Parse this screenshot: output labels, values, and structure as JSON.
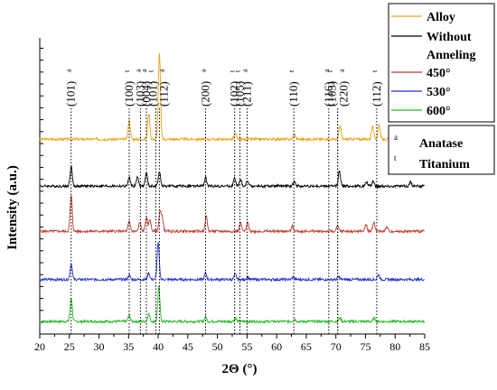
{
  "chart_data": {
    "type": "line",
    "xlabel": "2Θ (°)",
    "ylabel": "Intensity (a.u.)",
    "xlim": [
      20,
      85
    ],
    "xticks": [
      20,
      25,
      30,
      35,
      40,
      45,
      50,
      55,
      60,
      65,
      70,
      75,
      80,
      85
    ],
    "grid": false,
    "legend_position": "top-right",
    "series": [
      {
        "name": "Alloy",
        "color": "#e8a317",
        "offset": 4,
        "baseline": 0.12,
        "peaks": [
          [
            35.1,
            0.45
          ],
          [
            38.4,
            0.6
          ],
          [
            40.2,
            2.0
          ],
          [
            53.0,
            0.15
          ],
          [
            63.0,
            0.12
          ],
          [
            70.7,
            0.3
          ],
          [
            76.2,
            0.3
          ],
          [
            77.3,
            0.35
          ]
        ]
      },
      {
        "name": "Without Anneling",
        "color": "#000000",
        "offset": 3,
        "baseline": 0.08,
        "peaks": [
          [
            25.3,
            0.45
          ],
          [
            35.1,
            0.2
          ],
          [
            36.5,
            0.22
          ],
          [
            38.0,
            0.3
          ],
          [
            40.2,
            0.35
          ],
          [
            48.0,
            0.2
          ],
          [
            52.9,
            0.18
          ],
          [
            53.9,
            0.14
          ],
          [
            55.1,
            0.12
          ],
          [
            63.0,
            0.12
          ],
          [
            70.6,
            0.35
          ],
          [
            75.2,
            0.1
          ],
          [
            76.3,
            0.12
          ],
          [
            82.6,
            0.1
          ]
        ]
      },
      {
        "name": "450°",
        "color": "#c0392b",
        "offset": 2,
        "baseline": 0.1,
        "peaks": [
          [
            25.3,
            0.82
          ],
          [
            35.1,
            0.22
          ],
          [
            36.9,
            0.2
          ],
          [
            38.0,
            0.32
          ],
          [
            38.6,
            0.28
          ],
          [
            40.3,
            0.45
          ],
          [
            40.7,
            0.3
          ],
          [
            48.1,
            0.35
          ],
          [
            53.9,
            0.2
          ],
          [
            55.1,
            0.2
          ],
          [
            62.7,
            0.12
          ],
          [
            70.3,
            0.12
          ],
          [
            75.1,
            0.15
          ],
          [
            76.4,
            0.22
          ],
          [
            78.6,
            0.1
          ]
        ]
      },
      {
        "name": "530°",
        "color": "#2030d0",
        "offset": 1,
        "baseline": 0.05,
        "peaks": [
          [
            25.3,
            0.38
          ],
          [
            35.1,
            0.1
          ],
          [
            38.4,
            0.15
          ],
          [
            40.0,
            0.85
          ],
          [
            48.0,
            0.15
          ],
          [
            53.0,
            0.12
          ],
          [
            55.1,
            0.06
          ],
          [
            62.8,
            0.06
          ],
          [
            70.5,
            0.06
          ],
          [
            77.2,
            0.12
          ]
        ]
      },
      {
        "name": "600°",
        "color": "#22bb22",
        "offset": 0,
        "baseline": 0.04,
        "peaks": [
          [
            25.3,
            0.55
          ],
          [
            35.1,
            0.15
          ],
          [
            38.4,
            0.18
          ],
          [
            40.1,
            0.8
          ],
          [
            48.0,
            0.1
          ],
          [
            53.0,
            0.08
          ],
          [
            63.0,
            0.06
          ],
          [
            70.7,
            0.08
          ],
          [
            76.5,
            0.08
          ]
        ]
      }
    ],
    "peak_markers": [
      {
        "x": 25.3,
        "label": "(101)",
        "sup": "a"
      },
      {
        "x": 35.1,
        "label": "(100)",
        "sup": "t"
      },
      {
        "x": 37.0,
        "label": "(103)",
        "sup": "a"
      },
      {
        "x": 38.0,
        "label": "(004)",
        "sup": "a"
      },
      {
        "x": 39.6,
        "label": "(101)",
        "sup": "t"
      },
      {
        "x": 40.2,
        "label": "(112)",
        "sup": "a"
      },
      {
        "x": 48.0,
        "label": "(200)",
        "sup": "a"
      },
      {
        "x": 52.9,
        "label": "(102)",
        "sup": "t"
      },
      {
        "x": 53.8,
        "label": "(105)",
        "sup": "t"
      },
      {
        "x": 55.0,
        "label": "(211)",
        "sup": "a"
      },
      {
        "x": 62.9,
        "label": "(110)",
        "sup": "t"
      },
      {
        "x": 68.8,
        "label": "(116)",
        "sup": "a"
      },
      {
        "x": 70.3,
        "label": "(103)",
        "sup": "t"
      },
      {
        "x": 70.3,
        "label": "(220)",
        "sup": "a"
      },
      {
        "x": 76.9,
        "label": "(112)",
        "sup": "t"
      }
    ],
    "phase_legend": [
      {
        "sup": "a",
        "name": "Anatase"
      },
      {
        "sup": "t",
        "name": "Titanium"
      }
    ]
  }
}
